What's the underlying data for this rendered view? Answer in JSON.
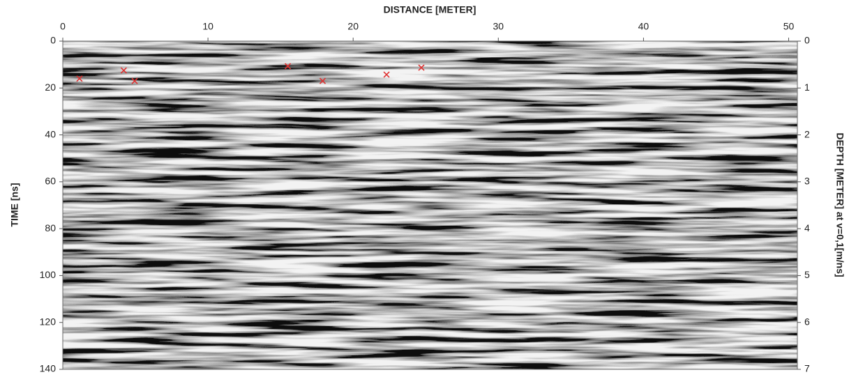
{
  "chart_data": {
    "type": "scatter",
    "title": "DISTANCE [METER]",
    "y_label": "TIME [ns]",
    "y2_label": "DEPTH [METER] at v=0,1[m/ns]",
    "x": [
      1.15,
      4.2,
      4.95,
      15.5,
      17.9,
      22.3,
      24.7
    ],
    "values": [
      16,
      12.5,
      17,
      10.7,
      17,
      14.3,
      11.3
    ],
    "color": "#e03030",
    "xlim": [
      0,
      50.6
    ],
    "xticks": [
      0,
      10,
      20,
      30,
      40,
      50
    ],
    "ylim": [
      0,
      140
    ],
    "yticks": [
      0,
      20,
      40,
      60,
      80,
      100,
      120,
      140
    ],
    "y2lim": [
      0,
      7
    ],
    "y2ticks": [
      0,
      1,
      2,
      3,
      4,
      5,
      6,
      7
    ],
    "y_inverted": true
  }
}
